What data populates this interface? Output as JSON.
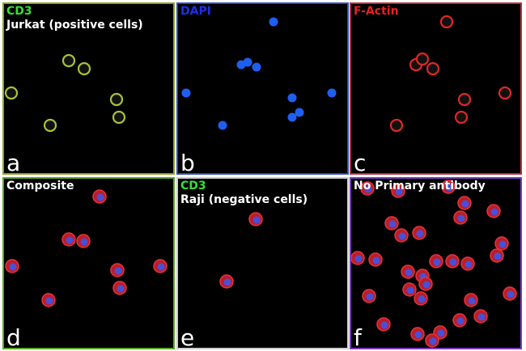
{
  "panels": [
    {
      "label": "CD3",
      "sublabel": "Jurkat (positive cells)",
      "letter": "a"
    },
    {
      "label": "DAPI",
      "letter": "b"
    },
    {
      "label": "F-Actin",
      "letter": "c"
    },
    {
      "label": "Composite",
      "letter": "d"
    },
    {
      "label": "CD3",
      "sublabel": "Raji (negative cells)",
      "letter": "e"
    },
    {
      "label": "No Primary antibody",
      "letter": "f"
    }
  ]
}
